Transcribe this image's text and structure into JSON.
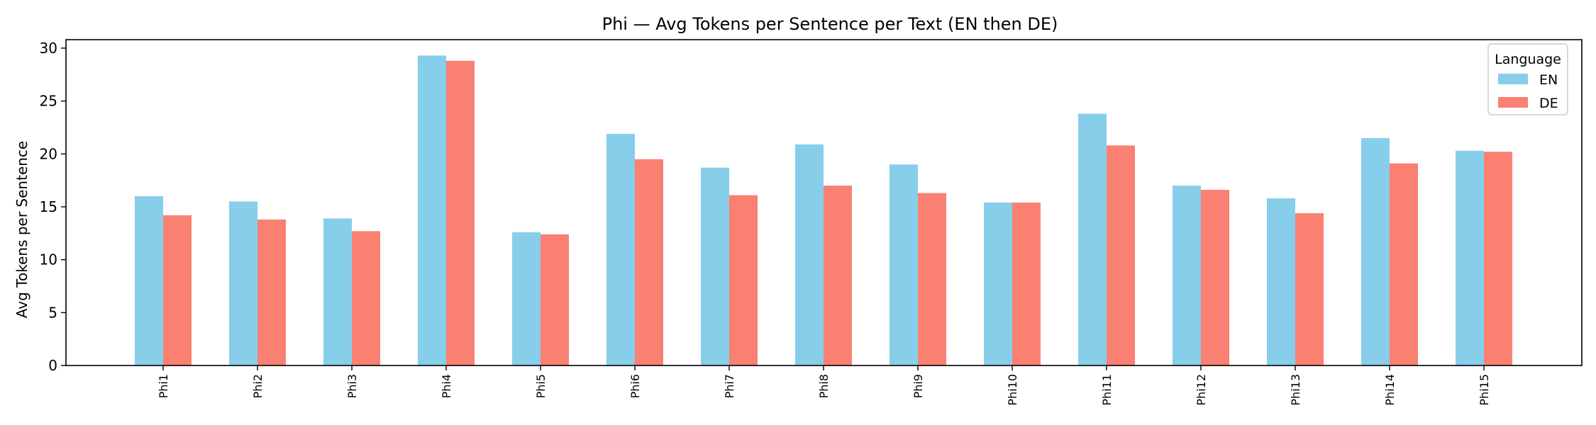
{
  "chart_data": {
    "type": "bar",
    "title": "Phi — Avg Tokens per Sentence per Text (EN then DE)",
    "xlabel": "",
    "ylabel": "Avg Tokens per Sentence",
    "ylim": [
      0,
      30.8
    ],
    "yticks": [
      0,
      5,
      10,
      15,
      20,
      25,
      30
    ],
    "grid": false,
    "legend": {
      "title": "Language",
      "placement": "top-right"
    },
    "x_ticks": [
      "Phi1",
      "Phi2",
      "Phi3",
      "Phi4",
      "Phi5",
      "Phi6",
      "Phi7",
      "Phi8",
      "Phi9",
      "Phi10",
      "Phi11",
      "Phi12",
      "Phi13",
      "Phi14",
      "Phi15"
    ],
    "groups": 15,
    "series": [
      {
        "name": "EN",
        "color": "#87ceeb",
        "values": [
          16.0,
          15.5,
          13.9,
          29.3,
          12.6,
          21.9,
          18.7,
          20.9,
          19.0,
          15.4,
          23.8,
          17.0,
          15.8,
          21.5,
          20.3
        ]
      },
      {
        "name": "DE",
        "color": "#fa8072",
        "values": [
          14.2,
          13.8,
          12.7,
          28.8,
          12.4,
          19.5,
          16.1,
          17.0,
          16.3,
          15.4,
          20.8,
          16.6,
          14.4,
          19.1,
          20.2
        ]
      }
    ]
  }
}
